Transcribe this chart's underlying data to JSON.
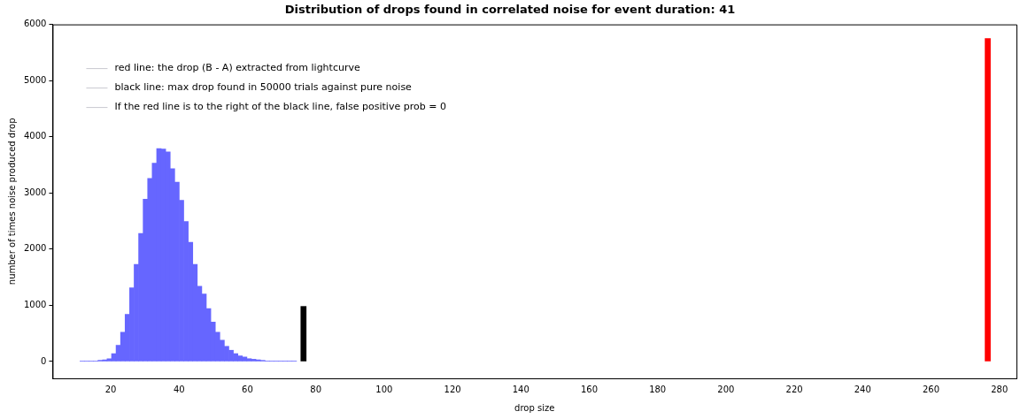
{
  "chart_data": {
    "type": "histogram",
    "title": "Distribution of drops found in correlated noise for event duration: 41",
    "xlabel": "drop size",
    "ylabel": "number of times noise produced drop",
    "bins": [
      11.0,
      12.32,
      13.64,
      14.96,
      16.28,
      17.6,
      18.92,
      20.24,
      21.56,
      22.88,
      24.2,
      25.52,
      26.84,
      28.16,
      29.48,
      30.8,
      32.12,
      33.44,
      34.76,
      36.08,
      37.4,
      38.72,
      40.04,
      41.36,
      42.68,
      44.0,
      45.32,
      46.64,
      47.96,
      49.28,
      50.6,
      51.92,
      53.24,
      54.56,
      55.88,
      57.2,
      58.52,
      59.84,
      61.16,
      62.48,
      63.8,
      65.12,
      66.44,
      67.76,
      69.08,
      70.4,
      71.72,
      73.04,
      74.36
    ],
    "values": [
      10,
      10,
      10,
      10,
      20,
      30,
      50,
      140,
      290,
      520,
      840,
      1310,
      1730,
      2280,
      2890,
      3260,
      3530,
      3790,
      3780,
      3730,
      3430,
      3190,
      2870,
      2490,
      2120,
      1730,
      1340,
      1200,
      940,
      700,
      520,
      380,
      270,
      200,
      140,
      100,
      80,
      50,
      40,
      30,
      20,
      10,
      10,
      10,
      10,
      10,
      10,
      10
    ],
    "color": "#6666ff",
    "series": [
      {
        "type": "bar",
        "color": "#000000",
        "x": [
          76.4
        ],
        "values": [
          980
        ]
      },
      {
        "type": "bar",
        "color": "#ff0000",
        "x": [
          276.6
        ],
        "values": [
          5750
        ]
      }
    ],
    "xlim": [
      3,
      285
    ],
    "xticks": [
      20,
      40,
      60,
      80,
      100,
      120,
      140,
      160,
      180,
      200,
      220,
      240,
      260,
      280
    ],
    "ylim": [
      -300,
      6000
    ],
    "yticks": [
      0,
      1000,
      2000,
      3000,
      4000,
      5000,
      6000
    ],
    "annotations": [
      "red line: the drop (B - A) extracted from lightcurve",
      "black line: max drop found in 50000 trials against pure noise",
      "If the red line is to the right of the black line, false positive prob = 0"
    ],
    "grid": false,
    "legend": false
  }
}
